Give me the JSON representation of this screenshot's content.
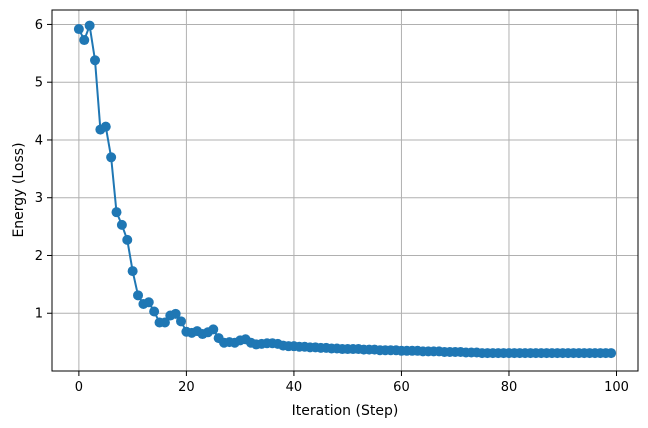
{
  "chart_data": {
    "type": "line",
    "title": "",
    "xlabel": "Iteration (Step)",
    "ylabel": "Energy (Loss)",
    "xlim": [
      -5,
      104
    ],
    "ylim": [
      0.0,
      6.25
    ],
    "xticks": [
      0,
      20,
      40,
      60,
      80,
      100
    ],
    "yticks": [
      1,
      2,
      3,
      4,
      5,
      6
    ],
    "grid": true,
    "marker": "circle",
    "color": "#1f77b4",
    "series": [
      {
        "x": [
          0,
          1,
          2,
          3,
          4,
          5,
          6,
          7,
          8,
          9,
          10,
          11,
          12,
          13,
          14,
          15,
          16,
          17,
          18,
          19,
          20,
          21,
          22,
          23,
          24,
          25,
          26,
          27,
          28,
          29,
          30,
          31,
          32,
          33,
          34,
          35,
          36,
          37,
          38,
          39,
          40,
          41,
          42,
          43,
          44,
          45,
          46,
          47,
          48,
          49,
          50,
          51,
          52,
          53,
          54,
          55,
          56,
          57,
          58,
          59,
          60,
          61,
          62,
          63,
          64,
          65,
          66,
          67,
          68,
          69,
          70,
          71,
          72,
          73,
          74,
          75,
          76,
          77,
          78,
          79,
          80,
          81,
          82,
          83,
          84,
          85,
          86,
          87,
          88,
          89,
          90,
          91,
          92,
          93,
          94,
          95,
          96,
          97,
          98,
          99
        ],
        "values": [
          5.92,
          5.73,
          5.98,
          5.38,
          4.18,
          4.23,
          3.7,
          2.75,
          2.53,
          2.27,
          1.73,
          1.31,
          1.16,
          1.19,
          1.03,
          0.84,
          0.84,
          0.96,
          0.99,
          0.86,
          0.68,
          0.66,
          0.69,
          0.64,
          0.67,
          0.72,
          0.57,
          0.49,
          0.5,
          0.49,
          0.53,
          0.55,
          0.49,
          0.46,
          0.47,
          0.48,
          0.48,
          0.47,
          0.44,
          0.43,
          0.43,
          0.42,
          0.42,
          0.41,
          0.41,
          0.4,
          0.4,
          0.39,
          0.39,
          0.38,
          0.38,
          0.38,
          0.38,
          0.37,
          0.37,
          0.37,
          0.36,
          0.36,
          0.36,
          0.36,
          0.35,
          0.35,
          0.35,
          0.35,
          0.34,
          0.34,
          0.34,
          0.34,
          0.33,
          0.33,
          0.33,
          0.33,
          0.32,
          0.32,
          0.32,
          0.31,
          0.31,
          0.31,
          0.31,
          0.31,
          0.31,
          0.31,
          0.31,
          0.31,
          0.31,
          0.31,
          0.31,
          0.31,
          0.31,
          0.31,
          0.31,
          0.31,
          0.31,
          0.31,
          0.31,
          0.31,
          0.31,
          0.31,
          0.31,
          0.31
        ]
      }
    ]
  }
}
